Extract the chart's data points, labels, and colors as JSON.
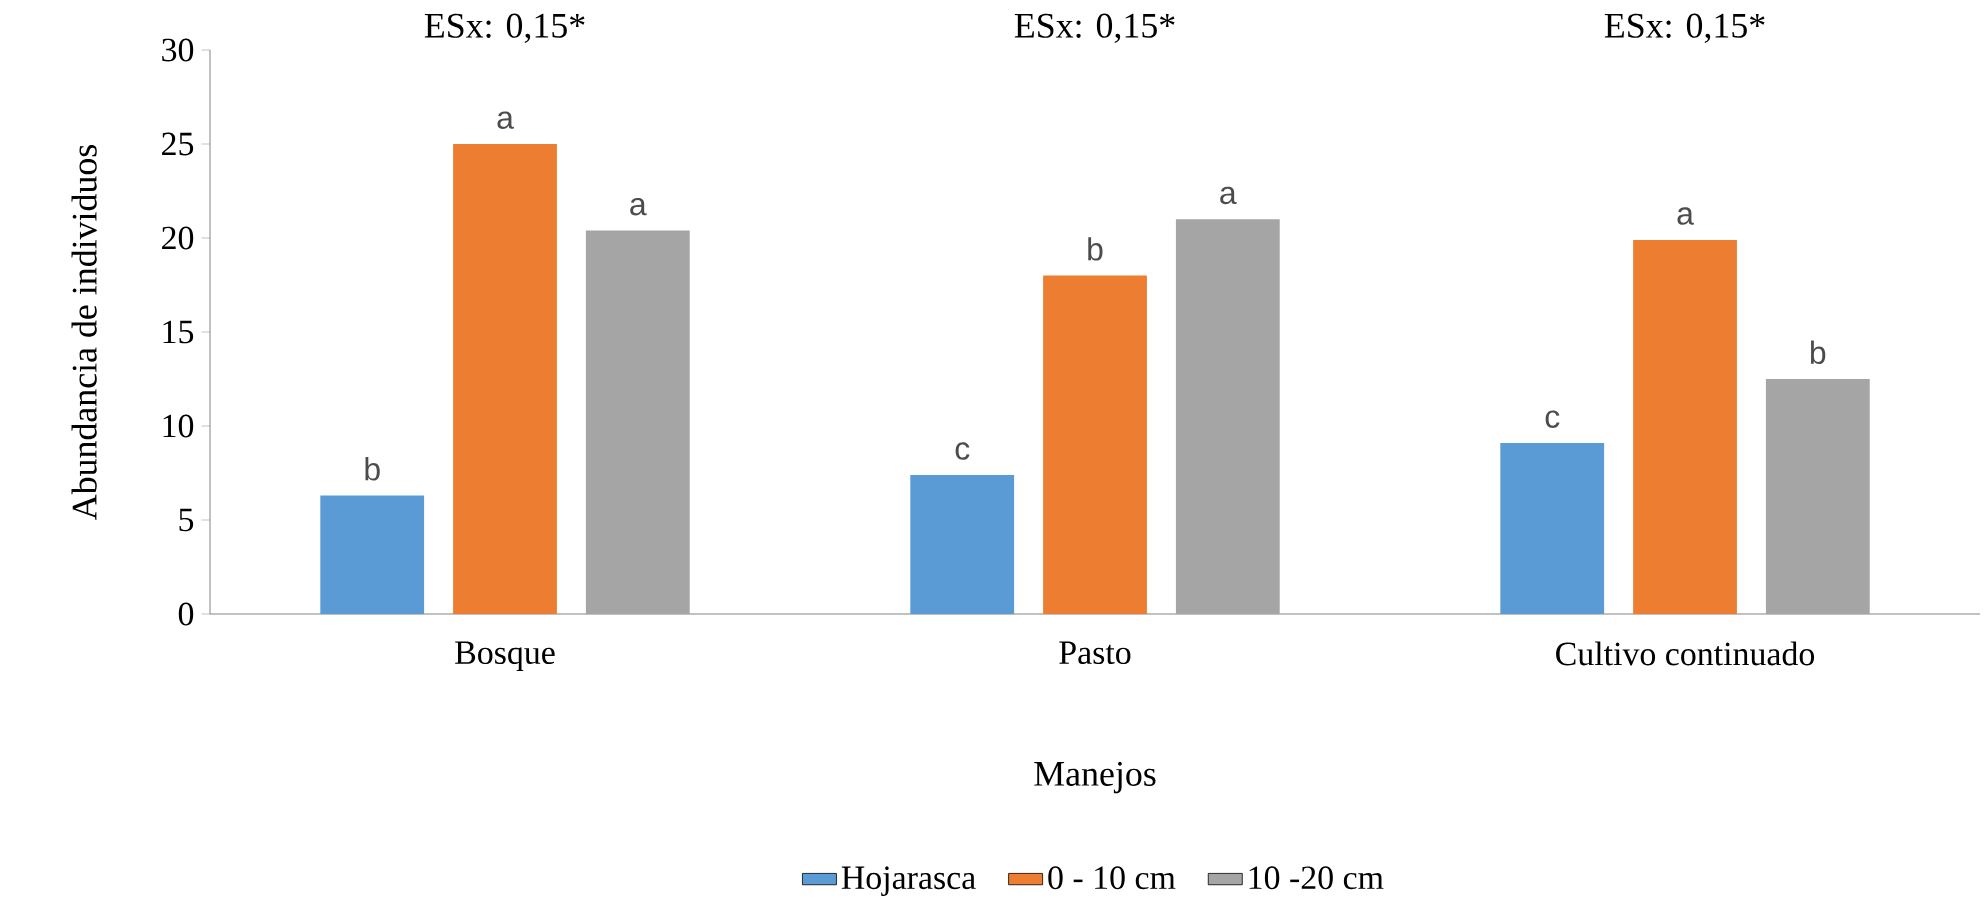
{
  "chart_data": {
    "type": "bar",
    "xlabel": "Manejos",
    "ylabel": "Abundancia de individuos",
    "categories": [
      "Bosque",
      "Pasto",
      "Cultivo continuado"
    ],
    "series": [
      {
        "name": "Hojarasca",
        "color": "#5b9bd5",
        "values": [
          6.3,
          7.4,
          9.1
        ]
      },
      {
        "name": "0 - 10 cm",
        "color": "#ed7d31",
        "values": [
          25,
          18,
          19.9
        ]
      },
      {
        "name": "10 -20 cm",
        "color": "#a5a5a5",
        "values": [
          20.4,
          21,
          12.5
        ]
      }
    ],
    "ylim": [
      0,
      30
    ],
    "yticks": [
      0,
      5,
      10,
      15,
      20,
      25,
      30
    ],
    "legend": "bottom",
    "annotations": [
      "ESx: 0,15*",
      "ESx: 0,15*",
      "ESx: 0,15*",
      "b",
      "a",
      "a",
      "c",
      "b",
      "a",
      "c",
      "a",
      "b"
    ]
  }
}
